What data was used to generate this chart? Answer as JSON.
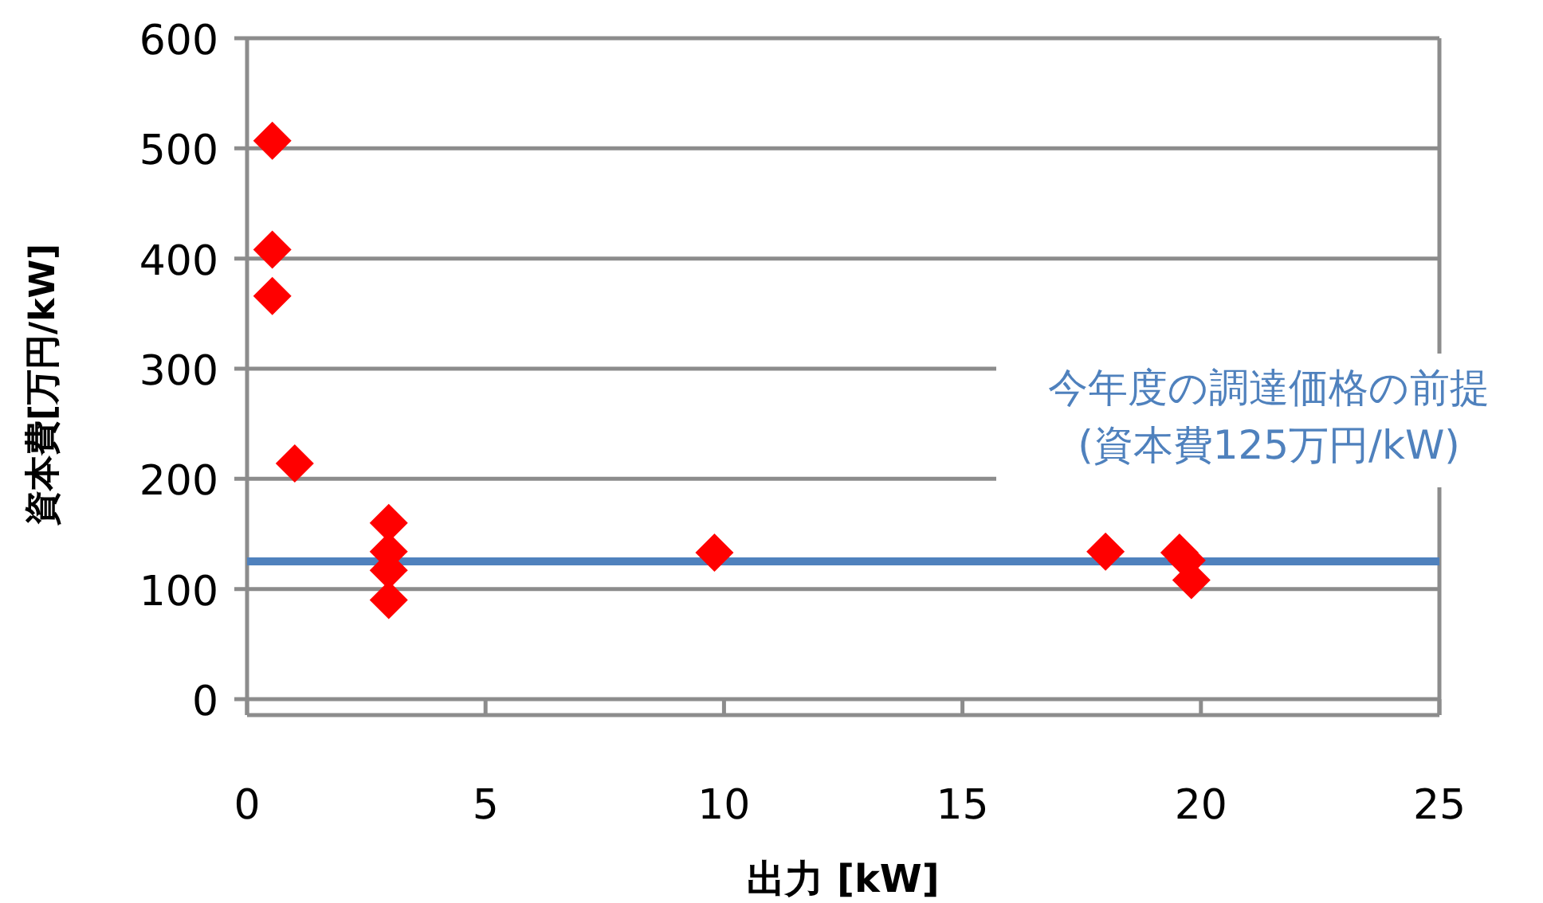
{
  "chart_data": {
    "type": "scatter",
    "xlabel": "出力  [kW]",
    "ylabel": "資本費[万円/kW]",
    "x": [
      0.53,
      0.53,
      0.53,
      1.0,
      2.97,
      2.97,
      2.97,
      2.97,
      9.8,
      18.0,
      19.55,
      19.7,
      19.8
    ],
    "series": [
      {
        "color": "#ff0000",
        "values": [
          507,
          408,
          366,
          214,
          160,
          134,
          117,
          90,
          133,
          134,
          133,
          126,
          108
        ]
      }
    ],
    "marker": "diamond",
    "xlim": [
      0,
      25
    ],
    "xticks": [
      0,
      5,
      10,
      15,
      20,
      25
    ],
    "ylim": [
      0,
      600
    ],
    "yticks": [
      0,
      100,
      200,
      300,
      400,
      500,
      600
    ],
    "grid": "y",
    "ref_lines": [
      {
        "axis": "y",
        "value": 125,
        "label": "今年度の調達価格の前提\n(資本費125万円/kW)",
        "color": "#4f81bd"
      }
    ]
  }
}
